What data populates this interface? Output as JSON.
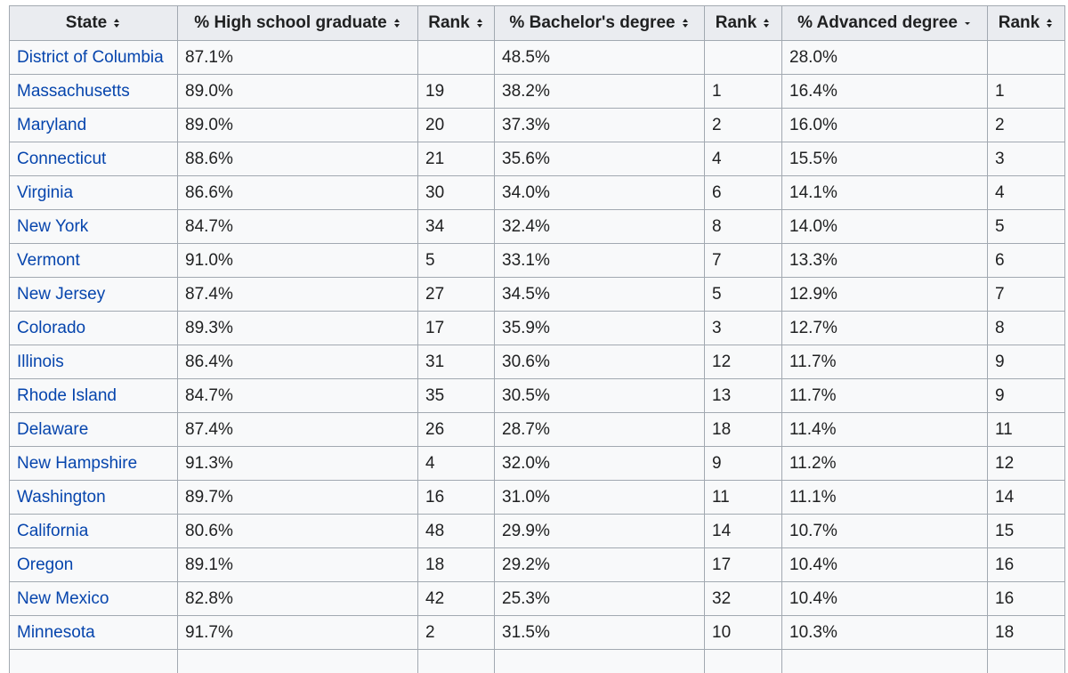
{
  "table": {
    "headers": [
      {
        "label": "State",
        "sort": "both"
      },
      {
        "label": "% High school graduate",
        "sort": "both"
      },
      {
        "label": "Rank",
        "sort": "both"
      },
      {
        "label": "% Bachelor's degree",
        "sort": "both"
      },
      {
        "label": "Rank",
        "sort": "both"
      },
      {
        "label": "% Advanced degree",
        "sort": "descending"
      },
      {
        "label": "Rank",
        "sort": "both"
      }
    ],
    "rows": [
      {
        "state": "District of Columbia",
        "hs": "87.1%",
        "hs_rank": "",
        "ba": "48.5%",
        "ba_rank": "",
        "adv": "28.0%",
        "adv_rank": ""
      },
      {
        "state": "Massachusetts",
        "hs": "89.0%",
        "hs_rank": "19",
        "ba": "38.2%",
        "ba_rank": "1",
        "adv": "16.4%",
        "adv_rank": "1"
      },
      {
        "state": "Maryland",
        "hs": "89.0%",
        "hs_rank": "20",
        "ba": "37.3%",
        "ba_rank": "2",
        "adv": "16.0%",
        "adv_rank": "2"
      },
      {
        "state": "Connecticut",
        "hs": "88.6%",
        "hs_rank": "21",
        "ba": "35.6%",
        "ba_rank": "4",
        "adv": "15.5%",
        "adv_rank": "3"
      },
      {
        "state": "Virginia",
        "hs": "86.6%",
        "hs_rank": "30",
        "ba": "34.0%",
        "ba_rank": "6",
        "adv": "14.1%",
        "adv_rank": "4"
      },
      {
        "state": "New York",
        "hs": "84.7%",
        "hs_rank": "34",
        "ba": "32.4%",
        "ba_rank": "8",
        "adv": "14.0%",
        "adv_rank": "5"
      },
      {
        "state": "Vermont",
        "hs": "91.0%",
        "hs_rank": "5",
        "ba": "33.1%",
        "ba_rank": "7",
        "adv": "13.3%",
        "adv_rank": "6"
      },
      {
        "state": "New Jersey",
        "hs": "87.4%",
        "hs_rank": "27",
        "ba": "34.5%",
        "ba_rank": "5",
        "adv": "12.9%",
        "adv_rank": "7"
      },
      {
        "state": "Colorado",
        "hs": "89.3%",
        "hs_rank": "17",
        "ba": "35.9%",
        "ba_rank": "3",
        "adv": "12.7%",
        "adv_rank": "8"
      },
      {
        "state": "Illinois",
        "hs": "86.4%",
        "hs_rank": "31",
        "ba": "30.6%",
        "ba_rank": "12",
        "adv": "11.7%",
        "adv_rank": "9"
      },
      {
        "state": "Rhode Island",
        "hs": "84.7%",
        "hs_rank": "35",
        "ba": "30.5%",
        "ba_rank": "13",
        "adv": "11.7%",
        "adv_rank": "9"
      },
      {
        "state": "Delaware",
        "hs": "87.4%",
        "hs_rank": "26",
        "ba": "28.7%",
        "ba_rank": "18",
        "adv": "11.4%",
        "adv_rank": "11"
      },
      {
        "state": "New Hampshire",
        "hs": "91.3%",
        "hs_rank": "4",
        "ba": "32.0%",
        "ba_rank": "9",
        "adv": "11.2%",
        "adv_rank": "12"
      },
      {
        "state": "Washington",
        "hs": "89.7%",
        "hs_rank": "16",
        "ba": "31.0%",
        "ba_rank": "11",
        "adv": "11.1%",
        "adv_rank": "14"
      },
      {
        "state": "California",
        "hs": "80.6%",
        "hs_rank": "48",
        "ba": "29.9%",
        "ba_rank": "14",
        "adv": "10.7%",
        "adv_rank": "15"
      },
      {
        "state": "Oregon",
        "hs": "89.1%",
        "hs_rank": "18",
        "ba": "29.2%",
        "ba_rank": "17",
        "adv": "10.4%",
        "adv_rank": "16"
      },
      {
        "state": "New Mexico",
        "hs": "82.8%",
        "hs_rank": "42",
        "ba": "25.3%",
        "ba_rank": "32",
        "adv": "10.4%",
        "adv_rank": "16"
      },
      {
        "state": "Minnesota",
        "hs": "91.7%",
        "hs_rank": "2",
        "ba": "31.5%",
        "ba_rank": "10",
        "adv": "10.3%",
        "adv_rank": "18"
      }
    ]
  },
  "colors": {
    "link": "#0645ad",
    "border": "#a2a9b1",
    "header_bg": "#eaecf0",
    "cell_bg": "#f8f9fa"
  },
  "icons": {
    "sort_both": "sort-both-icon",
    "sort_descending": "sort-descending-icon"
  }
}
